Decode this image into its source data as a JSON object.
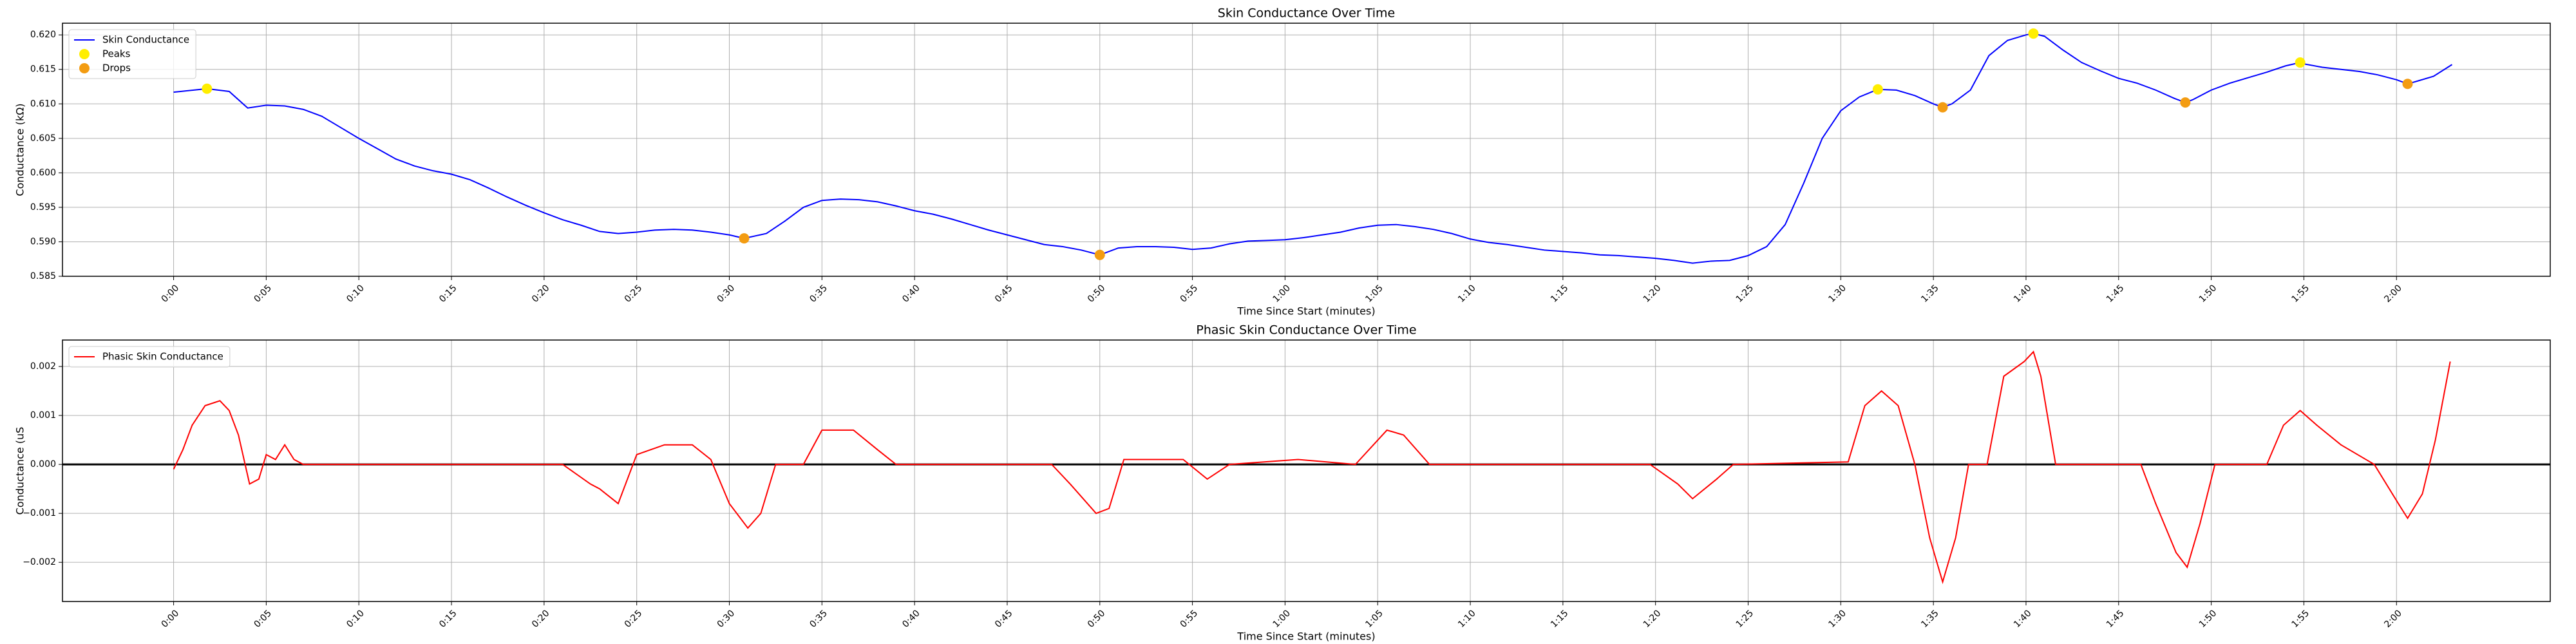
{
  "chart_data": [
    {
      "type": "line",
      "title": "Skin Conductance Over Time",
      "xlabel": "Time Since Start (minutes)",
      "ylabel": "Conductance (kΩ)",
      "xlim": [
        -6,
        128.3
      ],
      "ylim": [
        0.585,
        0.6217
      ],
      "grid": true,
      "legend": "upper left",
      "xticks": [
        {
          "value": 0,
          "label": "0:00"
        },
        {
          "value": 5,
          "label": "0:05"
        },
        {
          "value": 10,
          "label": "0:10"
        },
        {
          "value": 15,
          "label": "0:15"
        },
        {
          "value": 20,
          "label": "0:20"
        },
        {
          "value": 25,
          "label": "0:25"
        },
        {
          "value": 30,
          "label": "0:30"
        },
        {
          "value": 35,
          "label": "0:35"
        },
        {
          "value": 40,
          "label": "0:40"
        },
        {
          "value": 45,
          "label": "0:45"
        },
        {
          "value": 50,
          "label": "0:50"
        },
        {
          "value": 55,
          "label": "0:55"
        },
        {
          "value": 60,
          "label": "1:00"
        },
        {
          "value": 65,
          "label": "1:05"
        },
        {
          "value": 70,
          "label": "1:10"
        },
        {
          "value": 75,
          "label": "1:15"
        },
        {
          "value": 80,
          "label": "1:20"
        },
        {
          "value": 85,
          "label": "1:25"
        },
        {
          "value": 90,
          "label": "1:30"
        },
        {
          "value": 95,
          "label": "1:35"
        },
        {
          "value": 100,
          "label": "1:40"
        },
        {
          "value": 105,
          "label": "1:45"
        },
        {
          "value": 110,
          "label": "1:50"
        },
        {
          "value": 115,
          "label": "1:55"
        },
        {
          "value": 120,
          "label": "2:00"
        }
      ],
      "yticks": [
        {
          "value": 0.585,
          "label": "0.585"
        },
        {
          "value": 0.59,
          "label": "0.590"
        },
        {
          "value": 0.595,
          "label": "0.595"
        },
        {
          "value": 0.6,
          "label": "0.600"
        },
        {
          "value": 0.605,
          "label": "0.605"
        },
        {
          "value": 0.61,
          "label": "0.610"
        },
        {
          "value": 0.615,
          "label": "0.615"
        },
        {
          "value": 0.62,
          "label": "0.620"
        }
      ],
      "series": [
        {
          "name": "Skin Conductance",
          "type": "line",
          "color": "#0000ff",
          "x": [
            0,
            1.8,
            3,
            4,
            5,
            6,
            7,
            8,
            9,
            10,
            11,
            12,
            13,
            14,
            15,
            16,
            17,
            18,
            19,
            20,
            21,
            22,
            23,
            24,
            25,
            26,
            27,
            28,
            29,
            30,
            30.8,
            32,
            33,
            34,
            35,
            36,
            37,
            38,
            39,
            40,
            41,
            42,
            43,
            44,
            45,
            46,
            47,
            48,
            49,
            50,
            51,
            52,
            53,
            54,
            55,
            56,
            57,
            58,
            59,
            60,
            61,
            62,
            63,
            64,
            65,
            66,
            67,
            68,
            69,
            70,
            71,
            72,
            73,
            74,
            75,
            76,
            77,
            78,
            79,
            80,
            81,
            82,
            83,
            84,
            85,
            86,
            87,
            88,
            89,
            90,
            91,
            92,
            93,
            94,
            95,
            95.5,
            96,
            97,
            98,
            99,
            100,
            100.4,
            101,
            102,
            103,
            104,
            105,
            106,
            107,
            108,
            108.6,
            109,
            110,
            111,
            112,
            113,
            114,
            114.8,
            115,
            116,
            117,
            118,
            119,
            120,
            120.6,
            121,
            122,
            123
          ],
          "values": [
            0.6117,
            0.6122,
            0.6118,
            0.6094,
            0.6098,
            0.6097,
            0.6092,
            0.6082,
            0.6066,
            0.605,
            0.6035,
            0.602,
            0.601,
            0.6003,
            0.5998,
            0.599,
            0.5978,
            0.5965,
            0.5953,
            0.5942,
            0.5932,
            0.5924,
            0.5915,
            0.5912,
            0.5914,
            0.5917,
            0.5918,
            0.5917,
            0.5914,
            0.591,
            0.5905,
            0.5912,
            0.593,
            0.595,
            0.596,
            0.5962,
            0.5961,
            0.5958,
            0.5952,
            0.5945,
            0.594,
            0.5933,
            0.5925,
            0.5917,
            0.591,
            0.5903,
            0.5896,
            0.5893,
            0.5888,
            0.5881,
            0.5891,
            0.5893,
            0.5893,
            0.5892,
            0.5889,
            0.5891,
            0.5897,
            0.5901,
            0.5902,
            0.5903,
            0.5906,
            0.591,
            0.5914,
            0.592,
            0.5924,
            0.5925,
            0.5922,
            0.5918,
            0.5912,
            0.5904,
            0.5899,
            0.5896,
            0.5892,
            0.5888,
            0.5886,
            0.5884,
            0.5881,
            0.588,
            0.5878,
            0.5876,
            0.5873,
            0.5869,
            0.5872,
            0.5873,
            0.588,
            0.5893,
            0.5925,
            0.5985,
            0.605,
            0.609,
            0.611,
            0.6121,
            0.612,
            0.6112,
            0.61,
            0.6095,
            0.61,
            0.612,
            0.617,
            0.6192,
            0.62,
            0.6202,
            0.6198,
            0.6178,
            0.616,
            0.6148,
            0.6137,
            0.613,
            0.612,
            0.6108,
            0.6102,
            0.6106,
            0.612,
            0.613,
            0.6138,
            0.6146,
            0.6155,
            0.616,
            0.6158,
            0.6153,
            0.615,
            0.6147,
            0.6142,
            0.6135,
            0.6129,
            0.6132,
            0.614,
            0.6157
          ]
        },
        {
          "name": "Peaks",
          "type": "scatter",
          "color": "#ffee00",
          "x": [
            1.8,
            92,
            100.4,
            114.8
          ],
          "values": [
            0.6122,
            0.6121,
            0.6202,
            0.616
          ]
        },
        {
          "name": "Drops",
          "type": "scatter",
          "color": "#f39c12",
          "x": [
            30.8,
            50,
            95.5,
            108.6,
            120.6
          ],
          "values": [
            0.5905,
            0.5881,
            0.6095,
            0.6102,
            0.6129
          ]
        }
      ]
    },
    {
      "type": "line",
      "title": "Phasic Skin Conductance Over Time",
      "xlabel": "Time Since Start (minutes)",
      "ylabel": "Conductance (uS",
      "xlim": [
        -6,
        128.3
      ],
      "ylim": [
        -0.0028,
        0.00254
      ],
      "grid": true,
      "legend": "upper left",
      "hline": 0,
      "xticks": [
        {
          "value": 0,
          "label": "0:00"
        },
        {
          "value": 5,
          "label": "0:05"
        },
        {
          "value": 10,
          "label": "0:10"
        },
        {
          "value": 15,
          "label": "0:15"
        },
        {
          "value": 20,
          "label": "0:20"
        },
        {
          "value": 25,
          "label": "0:25"
        },
        {
          "value": 30,
          "label": "0:30"
        },
        {
          "value": 35,
          "label": "0:35"
        },
        {
          "value": 40,
          "label": "0:40"
        },
        {
          "value": 45,
          "label": "0:45"
        },
        {
          "value": 50,
          "label": "0:50"
        },
        {
          "value": 55,
          "label": "0:55"
        },
        {
          "value": 60,
          "label": "1:00"
        },
        {
          "value": 65,
          "label": "1:05"
        },
        {
          "value": 70,
          "label": "1:10"
        },
        {
          "value": 75,
          "label": "1:15"
        },
        {
          "value": 80,
          "label": "1:20"
        },
        {
          "value": 85,
          "label": "1:25"
        },
        {
          "value": 90,
          "label": "1:30"
        },
        {
          "value": 95,
          "label": "1:35"
        },
        {
          "value": 100,
          "label": "1:40"
        },
        {
          "value": 105,
          "label": "1:45"
        },
        {
          "value": 110,
          "label": "1:50"
        },
        {
          "value": 115,
          "label": "1:55"
        },
        {
          "value": 120,
          "label": "2:00"
        }
      ],
      "yticks": [
        {
          "value": -0.002,
          "label": "−0.002"
        },
        {
          "value": -0.001,
          "label": "−0.001"
        },
        {
          "value": 0,
          "label": "0.000"
        },
        {
          "value": 0.001,
          "label": "0.001"
        },
        {
          "value": 0.002,
          "label": "0.002"
        }
      ],
      "series": [
        {
          "name": "Phasic Skin Conductance",
          "type": "line",
          "color": "#ff0000",
          "x": [
            0,
            0.5,
            1,
            1.7,
            2.5,
            3,
            3.5,
            4.1,
            4.6,
            5,
            5.5,
            6,
            6.5,
            7,
            21,
            22.5,
            23,
            24,
            25,
            26.5,
            28,
            29,
            30,
            31,
            31.7,
            32.5,
            34,
            35,
            36.7,
            38,
            39,
            47.4,
            48.4,
            49.8,
            50.5,
            51.3,
            54.5,
            55.8,
            57,
            60.7,
            63.8,
            65.5,
            66.4,
            67.8,
            79.7,
            81.2,
            82,
            83.3,
            84.2,
            90.4,
            91.3,
            92.2,
            93.1,
            94,
            94.8,
            95.5,
            96.2,
            96.9,
            97.9,
            98.8,
            99.9,
            100.4,
            100.8,
            101.6,
            106.2,
            107,
            108.1,
            108.7,
            109.4,
            110.2,
            113,
            113.9,
            114.8,
            115.7,
            117,
            118.8,
            120.1,
            120.6,
            121.4,
            122.1,
            122.9
          ],
          "values": [
            -0.0001,
            0.0003,
            0.0008,
            0.0012,
            0.0013,
            0.0011,
            0.0006,
            -0.0004,
            -0.0003,
            0.0002,
            0.0001,
            0.0004,
            0.0001,
            0,
            0,
            -0.0004,
            -0.0005,
            -0.0008,
            0.0002,
            0.0004,
            0.0004,
            0.0001,
            -0.0008,
            -0.0013,
            -0.001,
            0,
            0,
            0.0007,
            0.0007,
            0.0003,
            0,
            0,
            -0.0004,
            -0.001,
            -0.0009,
            0.0001,
            0.0001,
            -0.0003,
            0,
            0.0001,
            0,
            0.0007,
            0.0006,
            0,
            0,
            -0.0004,
            -0.0007,
            -0.0003,
            0,
            5e-05,
            0.0012,
            0.0015,
            0.0012,
            0,
            -0.0015,
            -0.0024,
            -0.0015,
            0,
            0,
            0.0018,
            0.0021,
            0.0023,
            0.0018,
            0,
            0,
            -0.0008,
            -0.0018,
            -0.0021,
            -0.0012,
            0,
            0,
            0.0008,
            0.0011,
            0.0008,
            0.0004,
            0,
            -0.0008,
            -0.0011,
            -0.0006,
            0.0005,
            0.0021
          ]
        }
      ]
    }
  ]
}
